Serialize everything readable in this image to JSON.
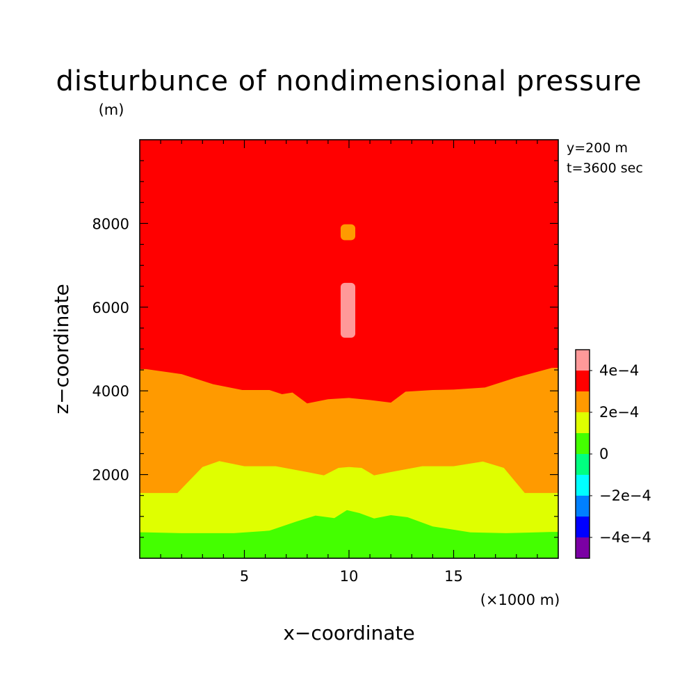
{
  "chart_data": {
    "type": "heatmap",
    "title": "disturbunce of nondimensional pressure",
    "ylabel": "z−coordinate",
    "yunit": "(m)",
    "xlabel": "x−coordinate",
    "xunit": "(×1000 m)",
    "annotations": [
      "y=200 m",
      "t=3600 sec"
    ],
    "xlim": [
      0,
      20
    ],
    "ylim": [
      0,
      10000
    ],
    "x_ticks": [
      5,
      10,
      15
    ],
    "x_tick_labels": [
      "5",
      "10",
      "15"
    ],
    "y_ticks": [
      2000,
      4000,
      6000,
      8000
    ],
    "y_tick_labels": [
      "2000",
      "4000",
      "6000",
      "8000"
    ],
    "colorbar": {
      "levels": [
        {
          "range": [
            -0.0006,
            -0.0004
          ],
          "color": "#7b00a4"
        },
        {
          "range": [
            -0.0004,
            -0.0002
          ],
          "color": "#0000ff"
        },
        {
          "range": [
            -0.0002,
            -0.0001
          ],
          "color": "#0080ff"
        },
        {
          "range": [
            -0.0001,
            0
          ],
          "color": "#00ffff"
        },
        {
          "range": [
            0,
            0.0001
          ],
          "color": "#00ff80"
        },
        {
          "range": [
            0.0001,
            0.0002
          ],
          "color": "#44ff00"
        },
        {
          "range": [
            0.0002,
            0.0003
          ],
          "color": "#dfff00"
        },
        {
          "range": [
            0.0003,
            0.0004
          ],
          "color": "#ff9a00"
        },
        {
          "range": [
            0.0004,
            0.0005
          ],
          "color": "#ff0000"
        },
        {
          "range": [
            0.0005,
            0.0006
          ],
          "color": "#ff9999"
        }
      ],
      "tick_labels": [
        "4e−4",
        "2e−4",
        "0",
        "−2e−4",
        "−4e−4"
      ]
    },
    "regions": [
      {
        "level": "0.0004 to 0.0005",
        "color": "#ff0000",
        "description_bounds_z": [
          3700,
          10000
        ]
      },
      {
        "level": "0.0003 to 0.0004",
        "color": "#ff9a00",
        "upper_boundary": [
          [
            0.3,
            4520
          ],
          [
            2,
            4400
          ],
          [
            3.5,
            4160
          ],
          [
            4.9,
            4020
          ],
          [
            6.2,
            4020
          ],
          [
            6.8,
            3920
          ],
          [
            7.3,
            3960
          ],
          [
            8,
            3700
          ],
          [
            9,
            3800
          ],
          [
            10,
            3830
          ],
          [
            11,
            3780
          ],
          [
            12,
            3720
          ],
          [
            12.7,
            3980
          ],
          [
            14,
            4020
          ],
          [
            15,
            4030
          ],
          [
            16.5,
            4080
          ],
          [
            18,
            4320
          ],
          [
            19.7,
            4550
          ]
        ]
      },
      {
        "level": "0.0002 to 0.0003",
        "color": "#dfff00",
        "upper_boundary": [
          [
            0.3,
            1560
          ],
          [
            1.8,
            1560
          ],
          [
            3,
            2180
          ],
          [
            3.8,
            2320
          ],
          [
            5,
            2200
          ],
          [
            6.5,
            2200
          ],
          [
            8,
            2060
          ],
          [
            8.8,
            1980
          ],
          [
            9.5,
            2160
          ],
          [
            10,
            2180
          ],
          [
            10.6,
            2160
          ],
          [
            11.2,
            1980
          ],
          [
            12,
            2060
          ],
          [
            13.5,
            2200
          ],
          [
            15,
            2200
          ],
          [
            16.4,
            2310
          ],
          [
            17.4,
            2160
          ],
          [
            18.4,
            1560
          ],
          [
            19.7,
            1560
          ]
        ]
      },
      {
        "level": "0.0001 to 0.0002",
        "color": "#44ff00",
        "upper_boundary": [
          [
            0.3,
            620
          ],
          [
            2,
            600
          ],
          [
            4.5,
            600
          ],
          [
            6.2,
            660
          ],
          [
            7.5,
            880
          ],
          [
            8.4,
            1020
          ],
          [
            9.3,
            960
          ],
          [
            9.9,
            1150
          ],
          [
            10.5,
            1080
          ],
          [
            11.2,
            950
          ],
          [
            12,
            1030
          ],
          [
            12.8,
            980
          ],
          [
            14,
            760
          ],
          [
            15.8,
            620
          ],
          [
            17.5,
            600
          ],
          [
            19.7,
            630
          ]
        ]
      },
      {
        "level": "0.0003 to 0.0004 (embedded)",
        "color": "#ff9a00",
        "x_range": [
          9.6,
          10.3
        ],
        "z_range": [
          7600,
          7980
        ]
      },
      {
        "level": "0.0005 to 0.0006 (embedded)",
        "color": "#ff9999",
        "x_range": [
          9.6,
          10.3
        ],
        "z_range": [
          5270,
          6580
        ]
      }
    ]
  }
}
